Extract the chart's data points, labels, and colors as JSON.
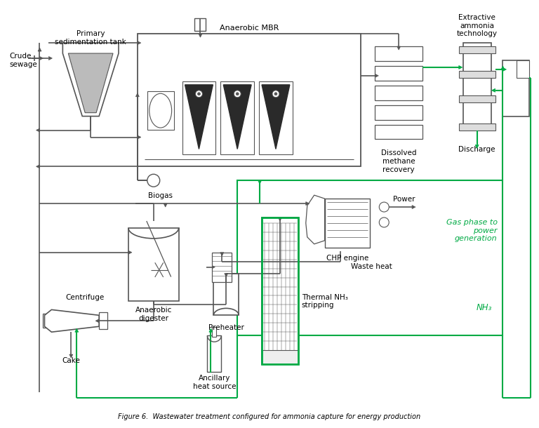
{
  "title": "Figure 6.  Wastewater treatment configured for ammonia capture for energy production",
  "bg_color": "#ffffff",
  "line_color": "#555555",
  "green_color": "#00aa44",
  "text_color": "#000000",
  "font_size": 7.5,
  "labels": {
    "crude_sewage": "Crude\nsewage",
    "primary_sed": "Primary\nsedimentation tank",
    "anaerobic_mbr": "Anaerobic MBR",
    "dissolved_methane": "Dissolved\nmethane\nrecovery",
    "extractive_ammonia": "Extractive\nammonia\ntechnology",
    "discharge": "Discharge",
    "biogas": "Biogas",
    "chp_engine": "CHP engine",
    "power": "Power",
    "waste_heat": "Waste heat",
    "gas_phase": "Gas phase to\npower\ngeneration",
    "nh3": "NH₃",
    "anaerobic_digester": "Anaerobic\ndigester",
    "centrifuge": "Centrifuge",
    "cake": "Cake",
    "preheater": "Preheater",
    "thermal_nh3": "Thermal NH₃\nstripping",
    "ancillary_heat": "Ancillary\nheat source"
  }
}
